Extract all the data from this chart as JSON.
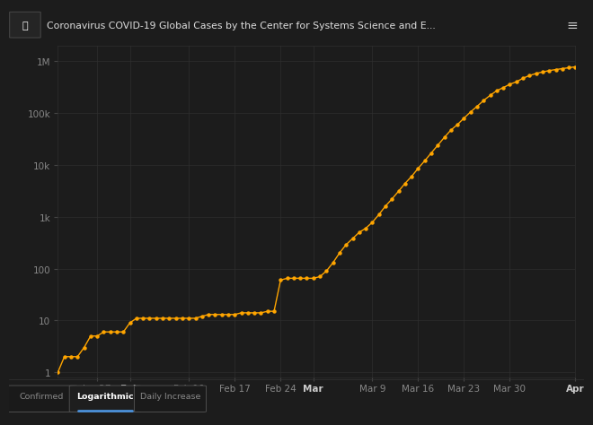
{
  "title": "Coronavirus COVID-19 Global Cases by the Center for Systems Science and E...",
  "bg_color": "#1c1c1c",
  "header_bg": "#0f0f0f",
  "line_color": "#FFA500",
  "dot_color": "#FFA500",
  "grid_color": "#2e2e2e",
  "axis_label_color": "#888888",
  "tab_active_color": "#4a90d9",
  "tabs": [
    "Confirmed",
    "Logarithmic",
    "Daily Increase"
  ],
  "active_tab": 1,
  "xtick_labels": [
    "Jan 27",
    "Feb",
    "Feb 10",
    "Feb 17",
    "Feb 24",
    "Mar",
    "Mar 9",
    "Mar 16",
    "Mar 23",
    "Mar 30",
    "Apr"
  ],
  "xtick_positions": [
    6,
    11,
    20,
    27,
    34,
    39,
    48,
    55,
    62,
    69,
    79
  ],
  "ytick_labels": [
    "1",
    "10",
    "100",
    "1k",
    "10k",
    "100k",
    "1M"
  ],
  "ytick_values": [
    1,
    10,
    100,
    1000,
    10000,
    100000,
    1000000
  ],
  "values": [
    1,
    2,
    2,
    2,
    3,
    5,
    5,
    6,
    6,
    6,
    6,
    9,
    11,
    11,
    11,
    11,
    11,
    11,
    11,
    11,
    11,
    11,
    12,
    13,
    13,
    13,
    13,
    13,
    14,
    14,
    14,
    14,
    15,
    15,
    60,
    65,
    65,
    65,
    65,
    65,
    70,
    90,
    130,
    200,
    290,
    380,
    500,
    600,
    780,
    1100,
    1600,
    2200,
    3100,
    4400,
    6000,
    8600,
    12000,
    17000,
    24000,
    34000,
    47000,
    60000,
    80000,
    105000,
    135000,
    175000,
    220000,
    270000,
    310000,
    360000,
    400000,
    470000,
    530000,
    580000,
    620000,
    660000,
    690000,
    720000,
    750000,
    780000
  ],
  "ylim": [
    0.8,
    2000000
  ],
  "bold_xticks": [
    "Feb",
    "Mar",
    "Apr"
  ]
}
